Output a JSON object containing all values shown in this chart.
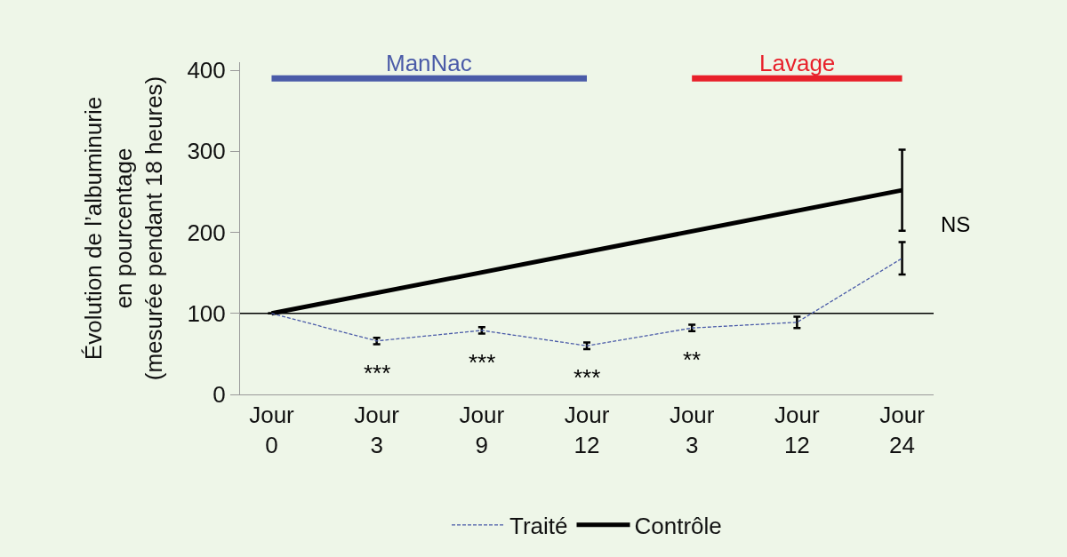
{
  "chart_data": {
    "type": "line",
    "ylabel": "Évolution de l’albuminurie\nen pourcentage\n(mesurée pendant 18 heures)",
    "categories": [
      "Jour\n0",
      "Jour\n3",
      "Jour\n9",
      "Jour\n12",
      "Jour\n3",
      "Jour\n12",
      "Jour\n24"
    ],
    "series": [
      {
        "name": "Traité",
        "color": "#4a5ba8",
        "line_style": "dashed",
        "values": [
          100,
          66,
          79,
          60,
          82,
          89,
          168
        ],
        "errors": [
          null,
          4,
          4,
          4,
          4,
          7,
          20
        ]
      },
      {
        "name": "Contrôle",
        "color": "#000000",
        "line_style": "solid",
        "values": [
          100,
          null,
          null,
          null,
          null,
          null,
          252
        ],
        "errors": [
          null,
          null,
          null,
          null,
          null,
          null,
          50
        ]
      },
      {
        "name": "ManNac",
        "color": "#4a5ba8",
        "line_style": "solid",
        "values": [
          390,
          390,
          390,
          390,
          null,
          null,
          null
        ]
      },
      {
        "name": "Lavage",
        "color": "#e8202a",
        "line_style": "solid",
        "values": [
          null,
          null,
          null,
          null,
          390,
          390,
          390
        ]
      }
    ],
    "ylim": [
      0,
      410
    ],
    "yticks": [
      0,
      100,
      200,
      300,
      400
    ],
    "ref_lines": [
      {
        "axis": "y",
        "value": 100,
        "color": "#000000"
      }
    ],
    "annotations": [
      {
        "text": "***",
        "x": "Jour\n3",
        "y": 66
      },
      {
        "text": "***",
        "x": "Jour\n9",
        "y": 79
      },
      {
        "text": "***",
        "x": "Jour\n12",
        "y": 60
      },
      "**",
      {
        "text": "NS",
        "x": "Jour\n24",
        "y": 210
      }
    ],
    "grid": false,
    "legend": "bottom"
  }
}
